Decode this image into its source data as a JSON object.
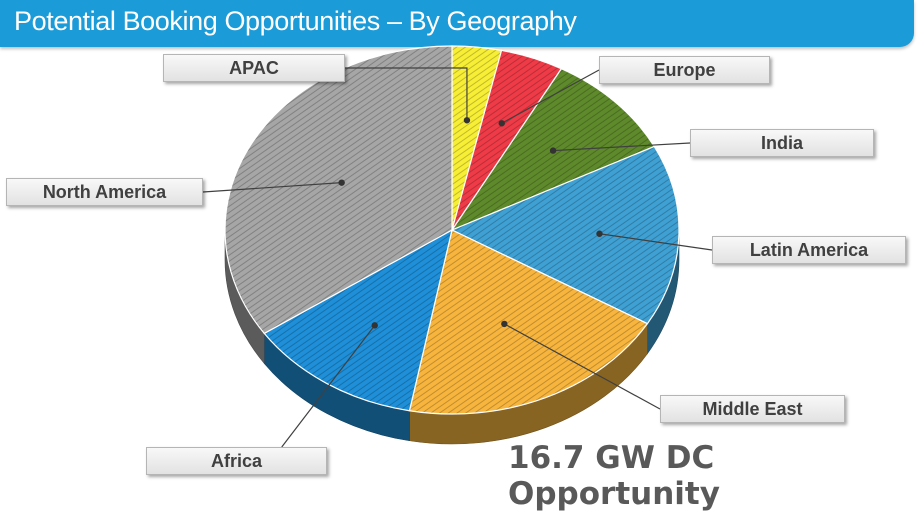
{
  "header": {
    "title": "Potential Booking Opportunities – By Geography"
  },
  "footer": {
    "note": "16.7 GW DC Opportunity"
  },
  "chart_data": {
    "type": "pie",
    "title": "Potential Booking Opportunities – By Geography",
    "series": [
      {
        "name": "APAC",
        "value": 3.5,
        "color": "#f7ee36"
      },
      {
        "name": "Europe",
        "value": 4.5,
        "color": "#ee3b47"
      },
      {
        "name": "India",
        "value": 9.5,
        "color": "#5e8a2b"
      },
      {
        "name": "Latin America",
        "value": 16,
        "color": "#3fa0d3"
      },
      {
        "name": "Middle East",
        "value": 19.5,
        "color": "#f7b53d"
      },
      {
        "name": "Africa",
        "value": 12.5,
        "color": "#1e8fd8"
      },
      {
        "name": "North America",
        "value": 34.5,
        "color": "#a6a6a6"
      }
    ],
    "legend": "none"
  }
}
